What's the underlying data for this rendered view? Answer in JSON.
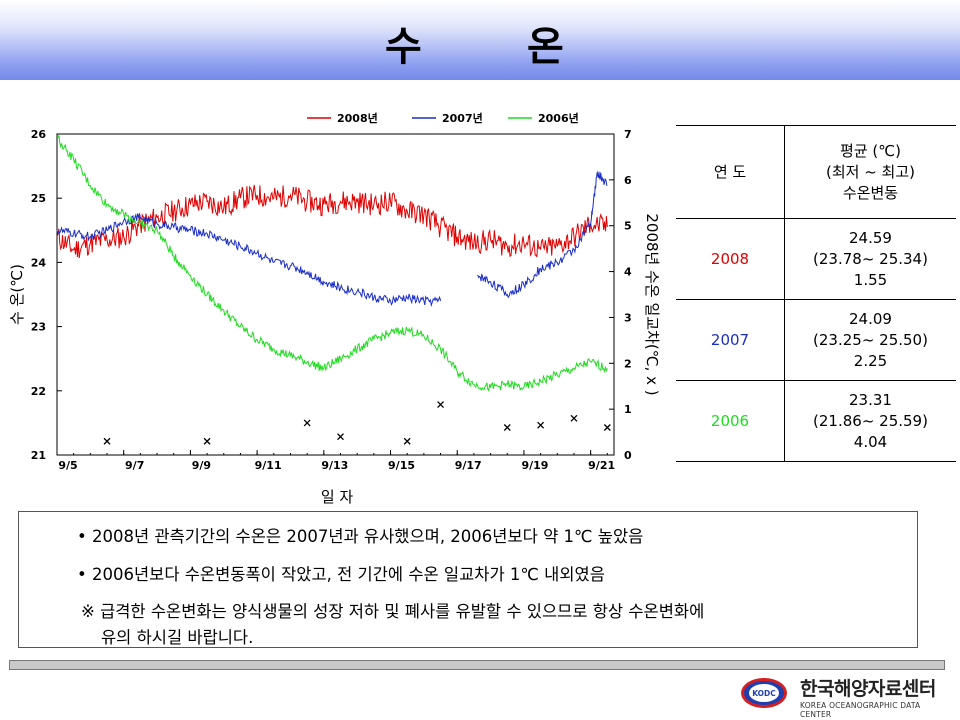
{
  "title": {
    "char1": "수",
    "char2": "온"
  },
  "chart_data": {
    "type": "line",
    "x_categories": [
      "9/5",
      "9/7",
      "9/9",
      "9/11",
      "9/13",
      "9/15",
      "9/17",
      "9/19",
      "9/21"
    ],
    "xlabel": "일      자",
    "ylabel_left": "수      온(℃)",
    "ylabel_right": "2008년 수온 일교차(℃, x )",
    "ylim_left": [
      21,
      26
    ],
    "ylim_right": [
      0,
      7
    ],
    "y_ticks_left": [
      "21",
      "22",
      "23",
      "24",
      "25",
      "26"
    ],
    "y_ticks_right": [
      "0",
      "1",
      "2",
      "3",
      "4",
      "5",
      "6",
      "7"
    ],
    "legend_position": "top",
    "series": [
      {
        "name": "2008년",
        "color": "#e00000",
        "points": [
          [
            5,
            24.4
          ],
          [
            5.5,
            24.2
          ],
          [
            6,
            24.3
          ],
          [
            6.5,
            24.35
          ],
          [
            7,
            24.4
          ],
          [
            7.5,
            24.6
          ],
          [
            8,
            24.7
          ],
          [
            8.5,
            24.8
          ],
          [
            9,
            24.9
          ],
          [
            9.5,
            24.95
          ],
          [
            10,
            24.85
          ],
          [
            10.5,
            25.0
          ],
          [
            11,
            25.05
          ],
          [
            11.5,
            25.0
          ],
          [
            12,
            25.05
          ],
          [
            12.5,
            24.95
          ],
          [
            13,
            24.9
          ],
          [
            13.5,
            24.95
          ],
          [
            14,
            24.95
          ],
          [
            14.5,
            24.9
          ],
          [
            15,
            24.95
          ],
          [
            15.5,
            24.8
          ],
          [
            16,
            24.75
          ],
          [
            16.5,
            24.55
          ],
          [
            17,
            24.4
          ],
          [
            17.5,
            24.3
          ],
          [
            18,
            24.35
          ],
          [
            18.5,
            24.25
          ],
          [
            19,
            24.3
          ],
          [
            19.5,
            24.2
          ],
          [
            20,
            24.25
          ],
          [
            20.5,
            24.4
          ],
          [
            21,
            24.6
          ],
          [
            21.5,
            24.55
          ]
        ]
      },
      {
        "name": "2007년",
        "color": "#1a2ec8",
        "points": [
          [
            5,
            24.5
          ],
          [
            5.5,
            24.45
          ],
          [
            6,
            24.4
          ],
          [
            6.5,
            24.5
          ],
          [
            7,
            24.65
          ],
          [
            7.5,
            24.7
          ],
          [
            8,
            24.6
          ],
          [
            8.5,
            24.55
          ],
          [
            9,
            24.5
          ],
          [
            9.5,
            24.45
          ],
          [
            10,
            24.35
          ],
          [
            10.5,
            24.25
          ],
          [
            11,
            24.15
          ],
          [
            11.5,
            24.0
          ],
          [
            12,
            23.95
          ],
          [
            12.5,
            23.85
          ],
          [
            13,
            23.7
          ],
          [
            13.5,
            23.6
          ],
          [
            14,
            23.55
          ],
          [
            14.5,
            23.45
          ],
          [
            15,
            23.4
          ],
          [
            15.5,
            23.45
          ],
          [
            16,
            23.4
          ],
          [
            16.5,
            23.4
          ],
          [
            null,
            null
          ],
          [
            17.6,
            23.8
          ],
          [
            18,
            23.7
          ],
          [
            18.5,
            23.5
          ],
          [
            19,
            23.65
          ],
          [
            19.5,
            23.9
          ],
          [
            20,
            24.0
          ],
          [
            20.5,
            24.2
          ],
          [
            21,
            24.6
          ],
          [
            21.2,
            25.4
          ],
          [
            21.5,
            25.2
          ]
        ]
      },
      {
        "name": "2006년",
        "color": "#20dc20",
        "points": [
          [
            5,
            25.95
          ],
          [
            5.5,
            25.6
          ],
          [
            6,
            25.2
          ],
          [
            6.5,
            24.9
          ],
          [
            7,
            24.75
          ],
          [
            7.5,
            24.6
          ],
          [
            8,
            24.5
          ],
          [
            8.5,
            24.1
          ],
          [
            9,
            23.8
          ],
          [
            9.5,
            23.5
          ],
          [
            10,
            23.25
          ],
          [
            10.5,
            23.0
          ],
          [
            11,
            22.8
          ],
          [
            11.5,
            22.65
          ],
          [
            12,
            22.55
          ],
          [
            12.5,
            22.45
          ],
          [
            13,
            22.35
          ],
          [
            13.5,
            22.5
          ],
          [
            14,
            22.65
          ],
          [
            14.5,
            22.8
          ],
          [
            15,
            22.9
          ],
          [
            15.5,
            22.95
          ],
          [
            16,
            22.85
          ],
          [
            16.5,
            22.65
          ],
          [
            17,
            22.3
          ],
          [
            17.5,
            22.1
          ],
          [
            18,
            22.05
          ],
          [
            18.5,
            22.1
          ],
          [
            19,
            22.05
          ],
          [
            19.5,
            22.15
          ],
          [
            20,
            22.25
          ],
          [
            20.5,
            22.35
          ],
          [
            21,
            22.45
          ],
          [
            21.5,
            22.35
          ]
        ]
      },
      {
        "name": "2008 일교차",
        "marker": "x",
        "axis": "right",
        "points": [
          [
            6.5,
            0.3
          ],
          [
            9.5,
            0.3
          ],
          [
            12.5,
            0.7
          ],
          [
            13.5,
            0.4
          ],
          [
            15.5,
            0.3
          ],
          [
            16.5,
            1.1
          ],
          [
            18.5,
            0.6
          ],
          [
            19.5,
            0.65
          ],
          [
            20.5,
            0.8
          ],
          [
            21.5,
            0.6
          ]
        ]
      }
    ]
  },
  "table": {
    "header_year": "연  도",
    "header_line1": "평균 (℃)",
    "header_line2": "(최저 ~ 최고)",
    "header_line3": "수온변동",
    "rows": [
      {
        "year": "2008",
        "color": "#e00000",
        "mean": "24.59",
        "range": "(23.78~ 25.34)",
        "var": "1.55"
      },
      {
        "year": "2007",
        "color": "#1a2ec8",
        "mean": "24.09",
        "range": "(23.25~ 25.50)",
        "var": "2.25"
      },
      {
        "year": "2006",
        "color": "#20dc20",
        "mean": "23.31",
        "range": "(21.86~ 25.59)",
        "var": "4.04"
      }
    ]
  },
  "notes": {
    "line1": "• 2008년 관측기간의 수온은 2007년과 유사했으며, 2006년보다 약 1℃ 높았음",
    "line2": "• 2006년보다 수온변동폭이 작았고, 전 기간에 수온 일교차가 1℃ 내외였음",
    "line3": "※ 급격한 수온변화는 양식생물의 성장 저하 및 폐사를 유발할 수 있으므로 항상 수온변화에",
    "line4": "유의 하시길 바랍니다."
  },
  "logo": {
    "name_kr": "한국해양자료센터",
    "name_en": "KOREA OCEANOGRAPHIC DATA CENTER",
    "mark": "KODC"
  }
}
